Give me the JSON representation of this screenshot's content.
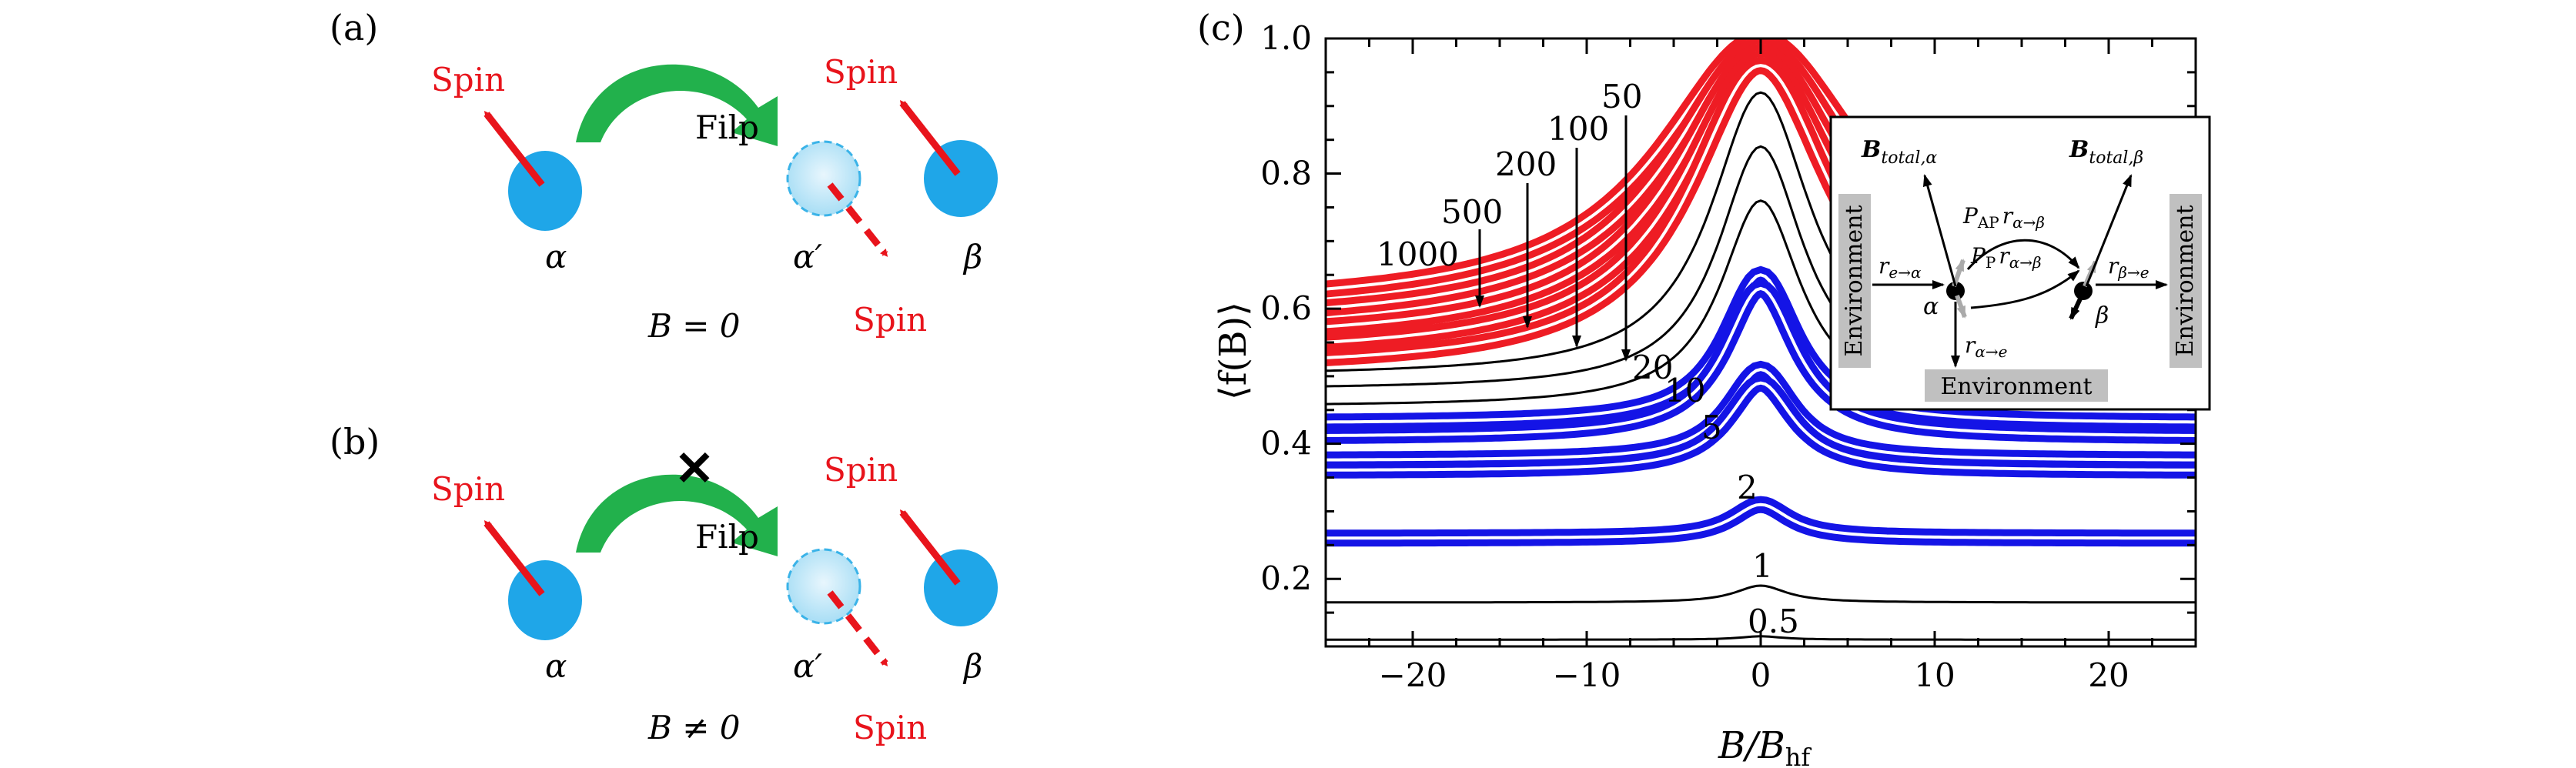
{
  "panel_a": {
    "label": "(a)",
    "spin_labels": [
      "Spin",
      "Spin",
      "Spin"
    ],
    "flip_label": "Filp",
    "alpha": "α",
    "alpha_prime": "α′",
    "beta": "β",
    "condition": "B = 0"
  },
  "panel_b": {
    "label": "(b)",
    "spin_labels": [
      "Spin",
      "Spin",
      "Spin"
    ],
    "flip_label": "Filp",
    "alpha": "α",
    "alpha_prime": "α′",
    "beta": "β",
    "condition": "B ≠ 0",
    "blocked_mark": "✕"
  },
  "panel_c": {
    "label": "(c)",
    "curve_labels": [
      "50",
      "100",
      "200",
      "500",
      "1000",
      "20",
      "10",
      "5",
      "2",
      "1",
      "0.5"
    ],
    "inset": {
      "b_total_alpha": "B",
      "b_total_alpha_sub": "total,α",
      "b_total_beta": "B",
      "b_total_beta_sub": "total,β",
      "p_ap": "P",
      "p_ap_sub": "AP",
      "r_ab": "r",
      "r_ab_sub": "α→β",
      "p_p": "P",
      "p_p_sub": "P",
      "r_e_alpha": "r",
      "r_e_alpha_sub": "e→α",
      "r_beta_e": "r",
      "r_beta_e_sub": "β→e",
      "r_alpha_e": "r",
      "r_alpha_e_sub": "α→e",
      "alpha": "α",
      "beta": "β",
      "environment": "Environment"
    }
  },
  "chart_data": {
    "type": "line",
    "xlabel": "B/B",
    "xlabel_sub": "hf",
    "ylabel": "⟨f(B)⟩",
    "xlim": [
      -25,
      25
    ],
    "ylim": [
      0.1,
      1.0
    ],
    "x_ticks": [
      -20,
      -10,
      0,
      10,
      20
    ],
    "x_tick_labels": [
      "−20",
      "−10",
      "0",
      "10",
      "20"
    ],
    "y_ticks": [
      0.2,
      0.4,
      0.6,
      0.8,
      1.0
    ],
    "y_tick_labels": [
      "0.2",
      "0.4",
      "0.6",
      "0.8",
      "1.0"
    ],
    "colors": {
      "red": "#ee1c24",
      "blue": "#1414e6",
      "black": "#000000"
    },
    "series": [
      {
        "color": "red",
        "band": true,
        "base": 0.6,
        "peak": 1.0,
        "width": 7.0
      },
      {
        "color": "red",
        "band": true,
        "base": 0.575,
        "peak": 0.99,
        "width": 6.5
      },
      {
        "color": "red",
        "band": true,
        "base": 0.55,
        "peak": 0.98,
        "width": 6.0
      },
      {
        "color": "red",
        "band": true,
        "base": 0.53,
        "peak": 0.97,
        "width": 5.5
      },
      {
        "color": "red",
        "band": true,
        "base": 0.51,
        "peak": 0.96,
        "width": 5.0
      },
      {
        "color": "black",
        "band": false,
        "base": 0.5,
        "peak": 0.92,
        "width": 3.5
      },
      {
        "color": "black",
        "band": false,
        "base": 0.48,
        "peak": 0.84,
        "width": 3.0
      },
      {
        "color": "black",
        "band": false,
        "base": 0.455,
        "peak": 0.76,
        "width": 2.8
      },
      {
        "color": "blue",
        "band": true,
        "base": 0.43,
        "peak": 0.65,
        "width": 2.5
      },
      {
        "color": "blue",
        "band": true,
        "base": 0.41,
        "peak": 0.63,
        "width": 2.5
      },
      {
        "color": "blue",
        "band": true,
        "base": 0.375,
        "peak": 0.51,
        "width": 2.3
      },
      {
        "color": "blue",
        "band": true,
        "base": 0.36,
        "peak": 0.49,
        "width": 2.3
      },
      {
        "color": "blue",
        "band": true,
        "base": 0.26,
        "peak": 0.31,
        "width": 2.0
      },
      {
        "color": "black",
        "band": false,
        "base": 0.165,
        "peak": 0.19,
        "width": 1.8
      },
      {
        "color": "black",
        "band": false,
        "base": 0.11,
        "peak": 0.115,
        "width": 1.5
      }
    ]
  }
}
